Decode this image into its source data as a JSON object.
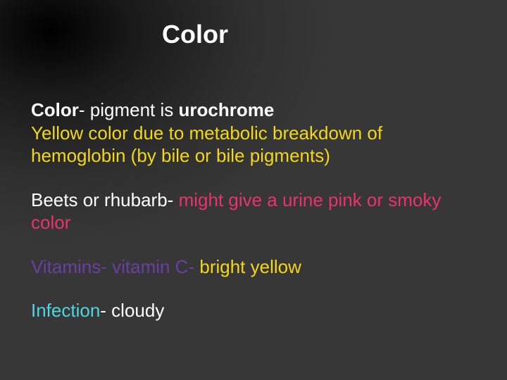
{
  "colors": {
    "white": "#ffffff",
    "yellow": "#f2d817",
    "pink": "#e8336d",
    "cyan": "#4fd5e0",
    "purple": "#6b3fa0"
  },
  "title": "Color",
  "p1": {
    "a": "Color",
    "b": "- pigment is ",
    "c": "urochrome",
    "d": "Yellow color due to metabolic breakdown of hemoglobin (by bile or bile pigments)"
  },
  "p2": {
    "a": "Beets or rhubarb",
    "b": "- ",
    "c": "might give a urine pink or smoky color"
  },
  "p3": {
    "a": "Vitamins- vitamin C- ",
    "b": "bright yellow"
  },
  "p4": {
    "a": "Infection",
    "b": "- cloudy"
  }
}
